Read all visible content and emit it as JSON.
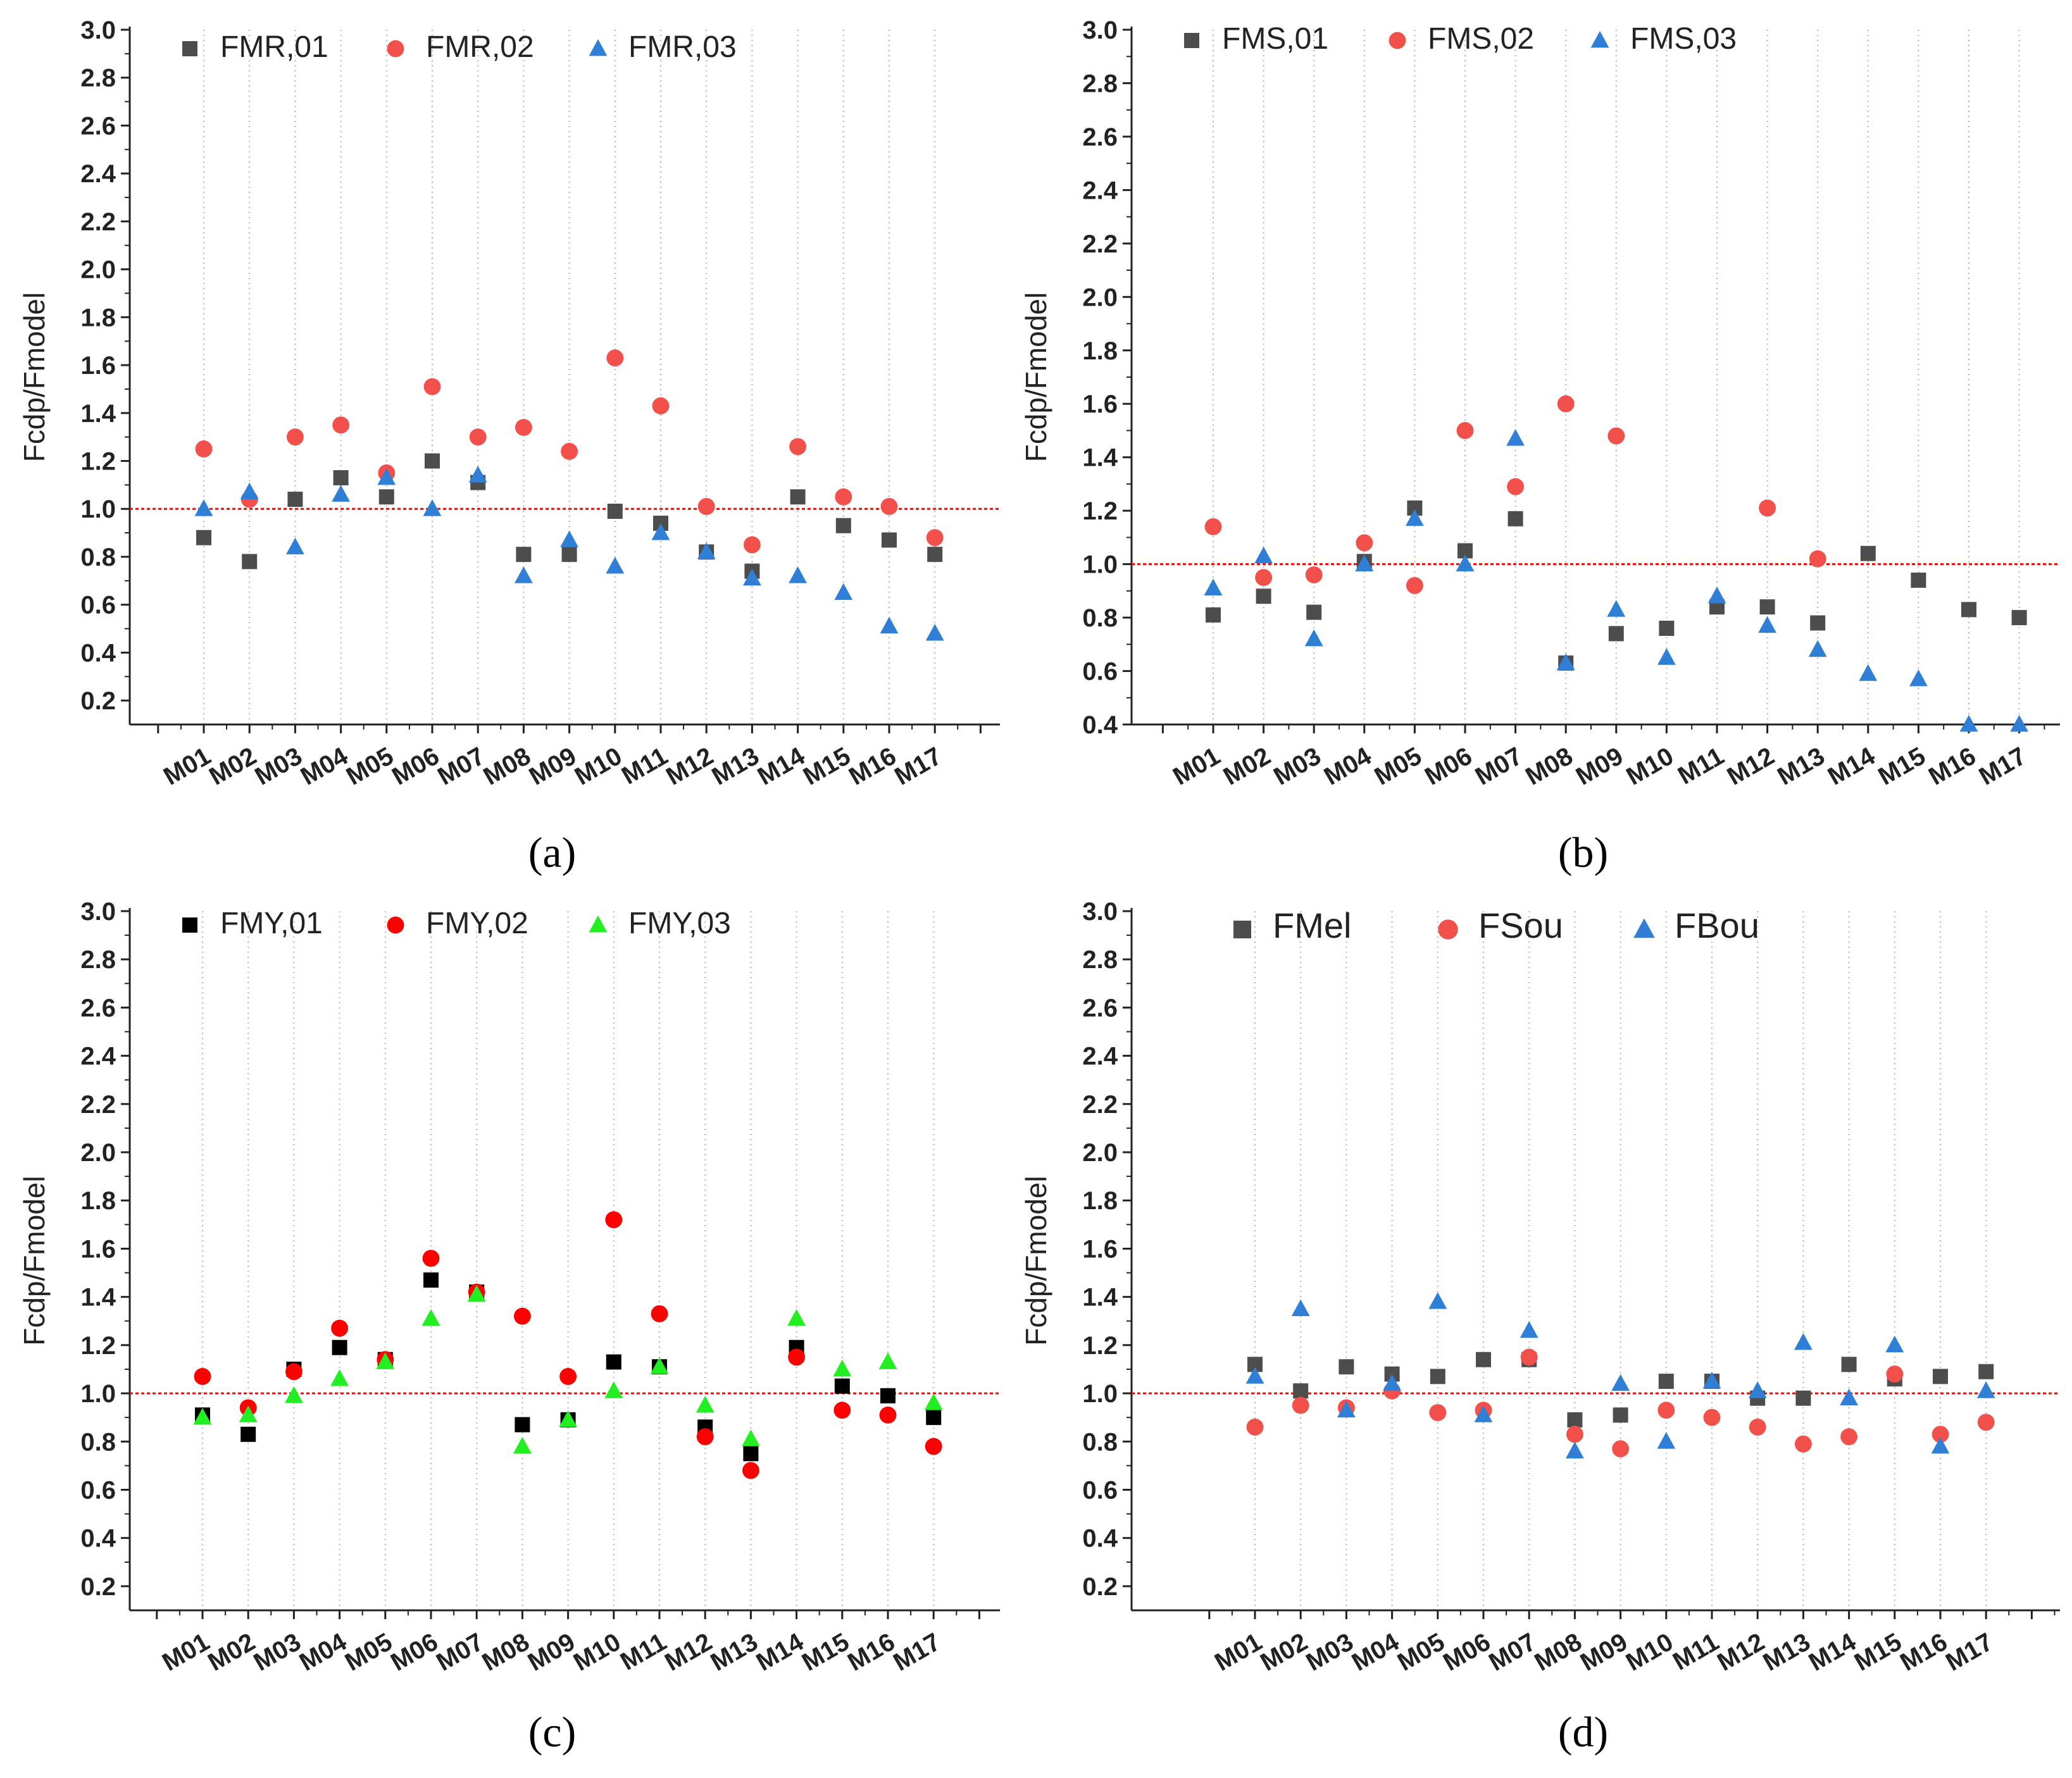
{
  "chart_data": [
    {
      "type": "scatter",
      "panel_label": "(a)",
      "ylabel": "Fcdp/Fmodel",
      "xlabel": "",
      "ylim": [
        0.1,
        3.0
      ],
      "yticks": [
        0.2,
        0.4,
        0.6,
        0.8,
        1.0,
        1.2,
        1.4,
        1.6,
        1.8,
        2.0,
        2.2,
        2.4,
        2.6,
        2.8,
        3.0
      ],
      "categories": [
        "M01",
        "M02",
        "M03",
        "M04",
        "M05",
        "M06",
        "M07",
        "M08",
        "M09",
        "M10",
        "M11",
        "M12",
        "M13",
        "M14",
        "M15",
        "M16",
        "M17"
      ],
      "reference_line": 1.0,
      "reference_color": "#ff0000",
      "legend_position": "top-left",
      "grid": "vertical dotted",
      "series": [
        {
          "name": "FMR,01",
          "marker": "square",
          "color": "#4d4d4d",
          "values": [
            0.88,
            0.78,
            1.04,
            1.13,
            1.05,
            1.2,
            1.11,
            0.81,
            0.81,
            0.99,
            0.94,
            0.82,
            0.74,
            1.05,
            0.93,
            0.87,
            0.81
          ]
        },
        {
          "name": "FMR,02",
          "marker": "circle",
          "color": "#f2504b",
          "values": [
            1.25,
            1.04,
            1.3,
            1.35,
            1.15,
            1.51,
            1.3,
            1.34,
            1.24,
            1.63,
            1.43,
            1.01,
            0.85,
            1.26,
            1.05,
            1.01,
            0.88
          ]
        },
        {
          "name": "FMR,03",
          "marker": "triangle",
          "color": "#2f7fd6",
          "values": [
            1.0,
            1.07,
            0.84,
            1.06,
            1.13,
            1.0,
            1.14,
            0.72,
            0.87,
            0.76,
            0.9,
            0.82,
            0.71,
            0.72,
            0.65,
            0.51,
            0.48
          ]
        }
      ]
    },
    {
      "type": "scatter",
      "panel_label": "(b)",
      "ylabel": "Fcdp/Fmodel",
      "xlabel": "",
      "ylim": [
        0.4,
        3.0
      ],
      "yticks": [
        0.4,
        0.6,
        0.8,
        1.0,
        1.2,
        1.4,
        1.6,
        1.8,
        2.0,
        2.2,
        2.4,
        2.6,
        2.8,
        3.0
      ],
      "categories": [
        "M01",
        "M02",
        "M03",
        "M04",
        "M05",
        "M06",
        "M07",
        "M08",
        "M09",
        "M10",
        "M11",
        "M12",
        "M13",
        "M14",
        "M15",
        "M16",
        "M17"
      ],
      "reference_line": 1.0,
      "reference_color": "#ff0000",
      "legend_position": "top-left",
      "grid": "vertical dotted",
      "series": [
        {
          "name": "FMS,01",
          "marker": "square",
          "color": "#4d4d4d",
          "values": [
            0.81,
            0.88,
            0.82,
            1.01,
            1.21,
            1.05,
            1.17,
            0.63,
            0.74,
            0.76,
            0.84,
            0.84,
            0.78,
            1.04,
            0.94,
            0.83,
            0.8
          ]
        },
        {
          "name": "FMS,02",
          "marker": "circle",
          "color": "#f2504b",
          "values": [
            1.14,
            0.95,
            0.96,
            1.08,
            0.92,
            1.5,
            1.29,
            1.6,
            1.48,
            null,
            null,
            1.21,
            1.02,
            null,
            null,
            null,
            null
          ]
        },
        {
          "name": "FMS,03",
          "marker": "triangle",
          "color": "#2f7fd6",
          "values": [
            0.91,
            1.03,
            0.72,
            1.0,
            1.17,
            1.0,
            1.47,
            0.63,
            0.83,
            0.65,
            0.88,
            0.77,
            0.68,
            0.59,
            0.57,
            0.4,
            0.4
          ]
        }
      ]
    },
    {
      "type": "scatter",
      "panel_label": "(c)",
      "ylabel": "Fcdp/Fmodel",
      "xlabel": "",
      "ylim": [
        0.1,
        3.0
      ],
      "yticks": [
        0.2,
        0.4,
        0.6,
        0.8,
        1.0,
        1.2,
        1.4,
        1.6,
        1.8,
        2.0,
        2.2,
        2.4,
        2.6,
        2.8,
        3.0
      ],
      "categories": [
        "M01",
        "M02",
        "M03",
        "M04",
        "M05",
        "M06",
        "M07",
        "M08",
        "M09",
        "M10",
        "M11",
        "M12",
        "M13",
        "M14",
        "M15",
        "M16",
        "M17"
      ],
      "reference_line": 1.0,
      "reference_color": "#ff0000",
      "legend_position": "top-left",
      "grid": "vertical dotted",
      "series": [
        {
          "name": "FMY,01",
          "marker": "square",
          "color": "#000000",
          "values": [
            0.91,
            0.83,
            1.1,
            1.19,
            1.14,
            1.47,
            1.42,
            0.87,
            0.89,
            1.13,
            1.11,
            0.86,
            0.75,
            1.19,
            1.03,
            0.99,
            0.9
          ]
        },
        {
          "name": "FMY,02",
          "marker": "circle",
          "color": "#ff0000",
          "values": [
            1.07,
            0.94,
            1.09,
            1.27,
            1.14,
            1.56,
            1.42,
            1.32,
            1.07,
            1.72,
            1.33,
            0.82,
            0.68,
            1.15,
            0.93,
            0.91,
            0.78
          ]
        },
        {
          "name": "FMY,03",
          "marker": "triangle",
          "color": "#22ee22",
          "values": [
            0.9,
            0.91,
            0.99,
            1.06,
            1.13,
            1.31,
            1.41,
            0.78,
            0.89,
            1.01,
            1.11,
            0.95,
            0.81,
            1.31,
            1.1,
            1.13,
            0.96
          ]
        }
      ]
    },
    {
      "type": "scatter",
      "panel_label": "(d)",
      "ylabel": "Fcdp/Fmodel",
      "xlabel": "",
      "ylim": [
        0.1,
        3.0
      ],
      "yticks": [
        0.2,
        0.4,
        0.6,
        0.8,
        1.0,
        1.2,
        1.4,
        1.6,
        1.8,
        2.0,
        2.2,
        2.4,
        2.6,
        2.8,
        3.0
      ],
      "categories": [
        "M01",
        "M02",
        "M03",
        "M04",
        "M05",
        "M06",
        "M07",
        "M08",
        "M09",
        "M10",
        "M11",
        "M12",
        "M13",
        "M14",
        "M15",
        "M16",
        "M17"
      ],
      "reference_line": 1.0,
      "reference_color": "#ff0000",
      "legend_position": "top-left",
      "grid": "vertical dotted",
      "series": [
        {
          "name": "FMel",
          "marker": "square",
          "color": "#4d4d4d",
          "values": [
            1.12,
            1.01,
            1.11,
            1.08,
            1.07,
            1.14,
            1.14,
            0.89,
            0.91,
            1.05,
            1.05,
            0.98,
            0.98,
            1.12,
            1.06,
            1.07,
            1.09
          ]
        },
        {
          "name": "FSou",
          "marker": "circle",
          "color": "#f2504b",
          "values": [
            0.86,
            0.95,
            0.94,
            1.01,
            0.92,
            0.93,
            1.15,
            0.83,
            0.77,
            0.93,
            0.9,
            0.86,
            0.79,
            0.82,
            1.08,
            0.83,
            0.88
          ]
        },
        {
          "name": "FBou",
          "marker": "triangle",
          "color": "#2f7fd6",
          "values": [
            1.07,
            1.35,
            0.93,
            1.04,
            1.38,
            0.91,
            1.26,
            0.76,
            1.04,
            0.8,
            1.05,
            1.01,
            1.21,
            0.98,
            1.2,
            0.78,
            1.01
          ]
        }
      ]
    }
  ]
}
